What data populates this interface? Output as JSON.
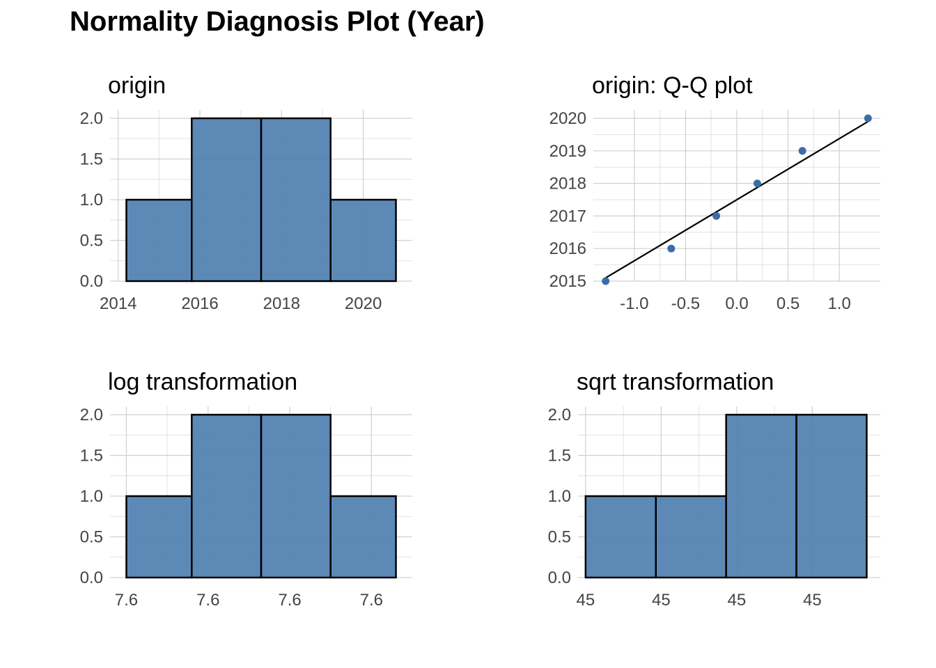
{
  "title": "Normality Diagnosis Plot (Year)",
  "colors": {
    "fill": "#4F7FB1",
    "point": "#3A6DA8",
    "line": "#000000"
  },
  "chart_data": [
    {
      "type": "bar",
      "title": "origin",
      "bins": [
        [
          2014.2,
          2015.8
        ],
        [
          2015.8,
          2017.5
        ],
        [
          2017.5,
          2019.2
        ],
        [
          2019.2,
          2020.8
        ]
      ],
      "values": [
        1,
        2,
        2,
        1
      ],
      "xlim": [
        2013.8,
        2021.2
      ],
      "xticks": [
        2014,
        2016,
        2018,
        2020
      ],
      "xtick_labels": [
        "2014",
        "2016",
        "2018",
        "2020"
      ],
      "ylim": [
        0,
        2
      ],
      "yticks": [
        0,
        0.5,
        1,
        1.5,
        2
      ],
      "ytick_labels": [
        "0.0",
        "0.5",
        "1.0",
        "1.5",
        "2.0"
      ]
    },
    {
      "type": "scatter",
      "title": "origin: Q-Q plot",
      "x": [
        -1.28,
        -0.64,
        -0.2,
        0.2,
        0.64,
        1.28
      ],
      "y": [
        2015,
        2016,
        2017,
        2018,
        2019,
        2020
      ],
      "reference_line": [
        [
          -1.28,
          2015.1
        ],
        [
          1.28,
          2019.9
        ]
      ],
      "xlim": [
        -1.4,
        1.4
      ],
      "xticks": [
        -1,
        -0.5,
        0,
        0.5,
        1
      ],
      "xtick_labels": [
        "-1.0",
        "-0.5",
        "0.0",
        "0.5",
        "1.0"
      ],
      "ylim": [
        2015,
        2020
      ],
      "yticks": [
        2015,
        2016,
        2017,
        2018,
        2019,
        2020
      ],
      "ytick_labels": [
        "2015",
        "2016",
        "2017",
        "2018",
        "2019",
        "2020"
      ]
    },
    {
      "type": "bar",
      "title": "log transformation",
      "bins": [
        [
          0.2,
          1.8
        ],
        [
          1.8,
          3.5
        ],
        [
          3.5,
          5.2
        ],
        [
          5.2,
          6.8
        ]
      ],
      "values": [
        1,
        2,
        2,
        1
      ],
      "xlim": [
        -0.2,
        7.2
      ],
      "xticks": [
        0.2,
        2.2,
        4.2,
        6.2
      ],
      "xtick_labels": [
        "7.6",
        "7.6",
        "7.6",
        "7.6"
      ],
      "ylim": [
        0,
        2
      ],
      "yticks": [
        0,
        0.5,
        1,
        1.5,
        2
      ],
      "ytick_labels": [
        "0.0",
        "0.5",
        "1.0",
        "1.5",
        "2.0"
      ]
    },
    {
      "type": "bar",
      "title": "sqrt transformation",
      "bins": [
        [
          0,
          0.93
        ],
        [
          0.93,
          1.86
        ],
        [
          1.86,
          2.79
        ],
        [
          2.79,
          3.72
        ]
      ],
      "values": [
        1,
        1,
        2,
        2
      ],
      "xlim": [
        -0.1,
        3.9
      ],
      "xticks": [
        0,
        1,
        2,
        3
      ],
      "xtick_labels": [
        "45",
        "45",
        "45",
        "45"
      ],
      "ylim": [
        0,
        2
      ],
      "yticks": [
        0,
        0.5,
        1,
        1.5,
        2
      ],
      "ytick_labels": [
        "0.0",
        "0.5",
        "1.0",
        "1.5",
        "2.0"
      ]
    }
  ]
}
